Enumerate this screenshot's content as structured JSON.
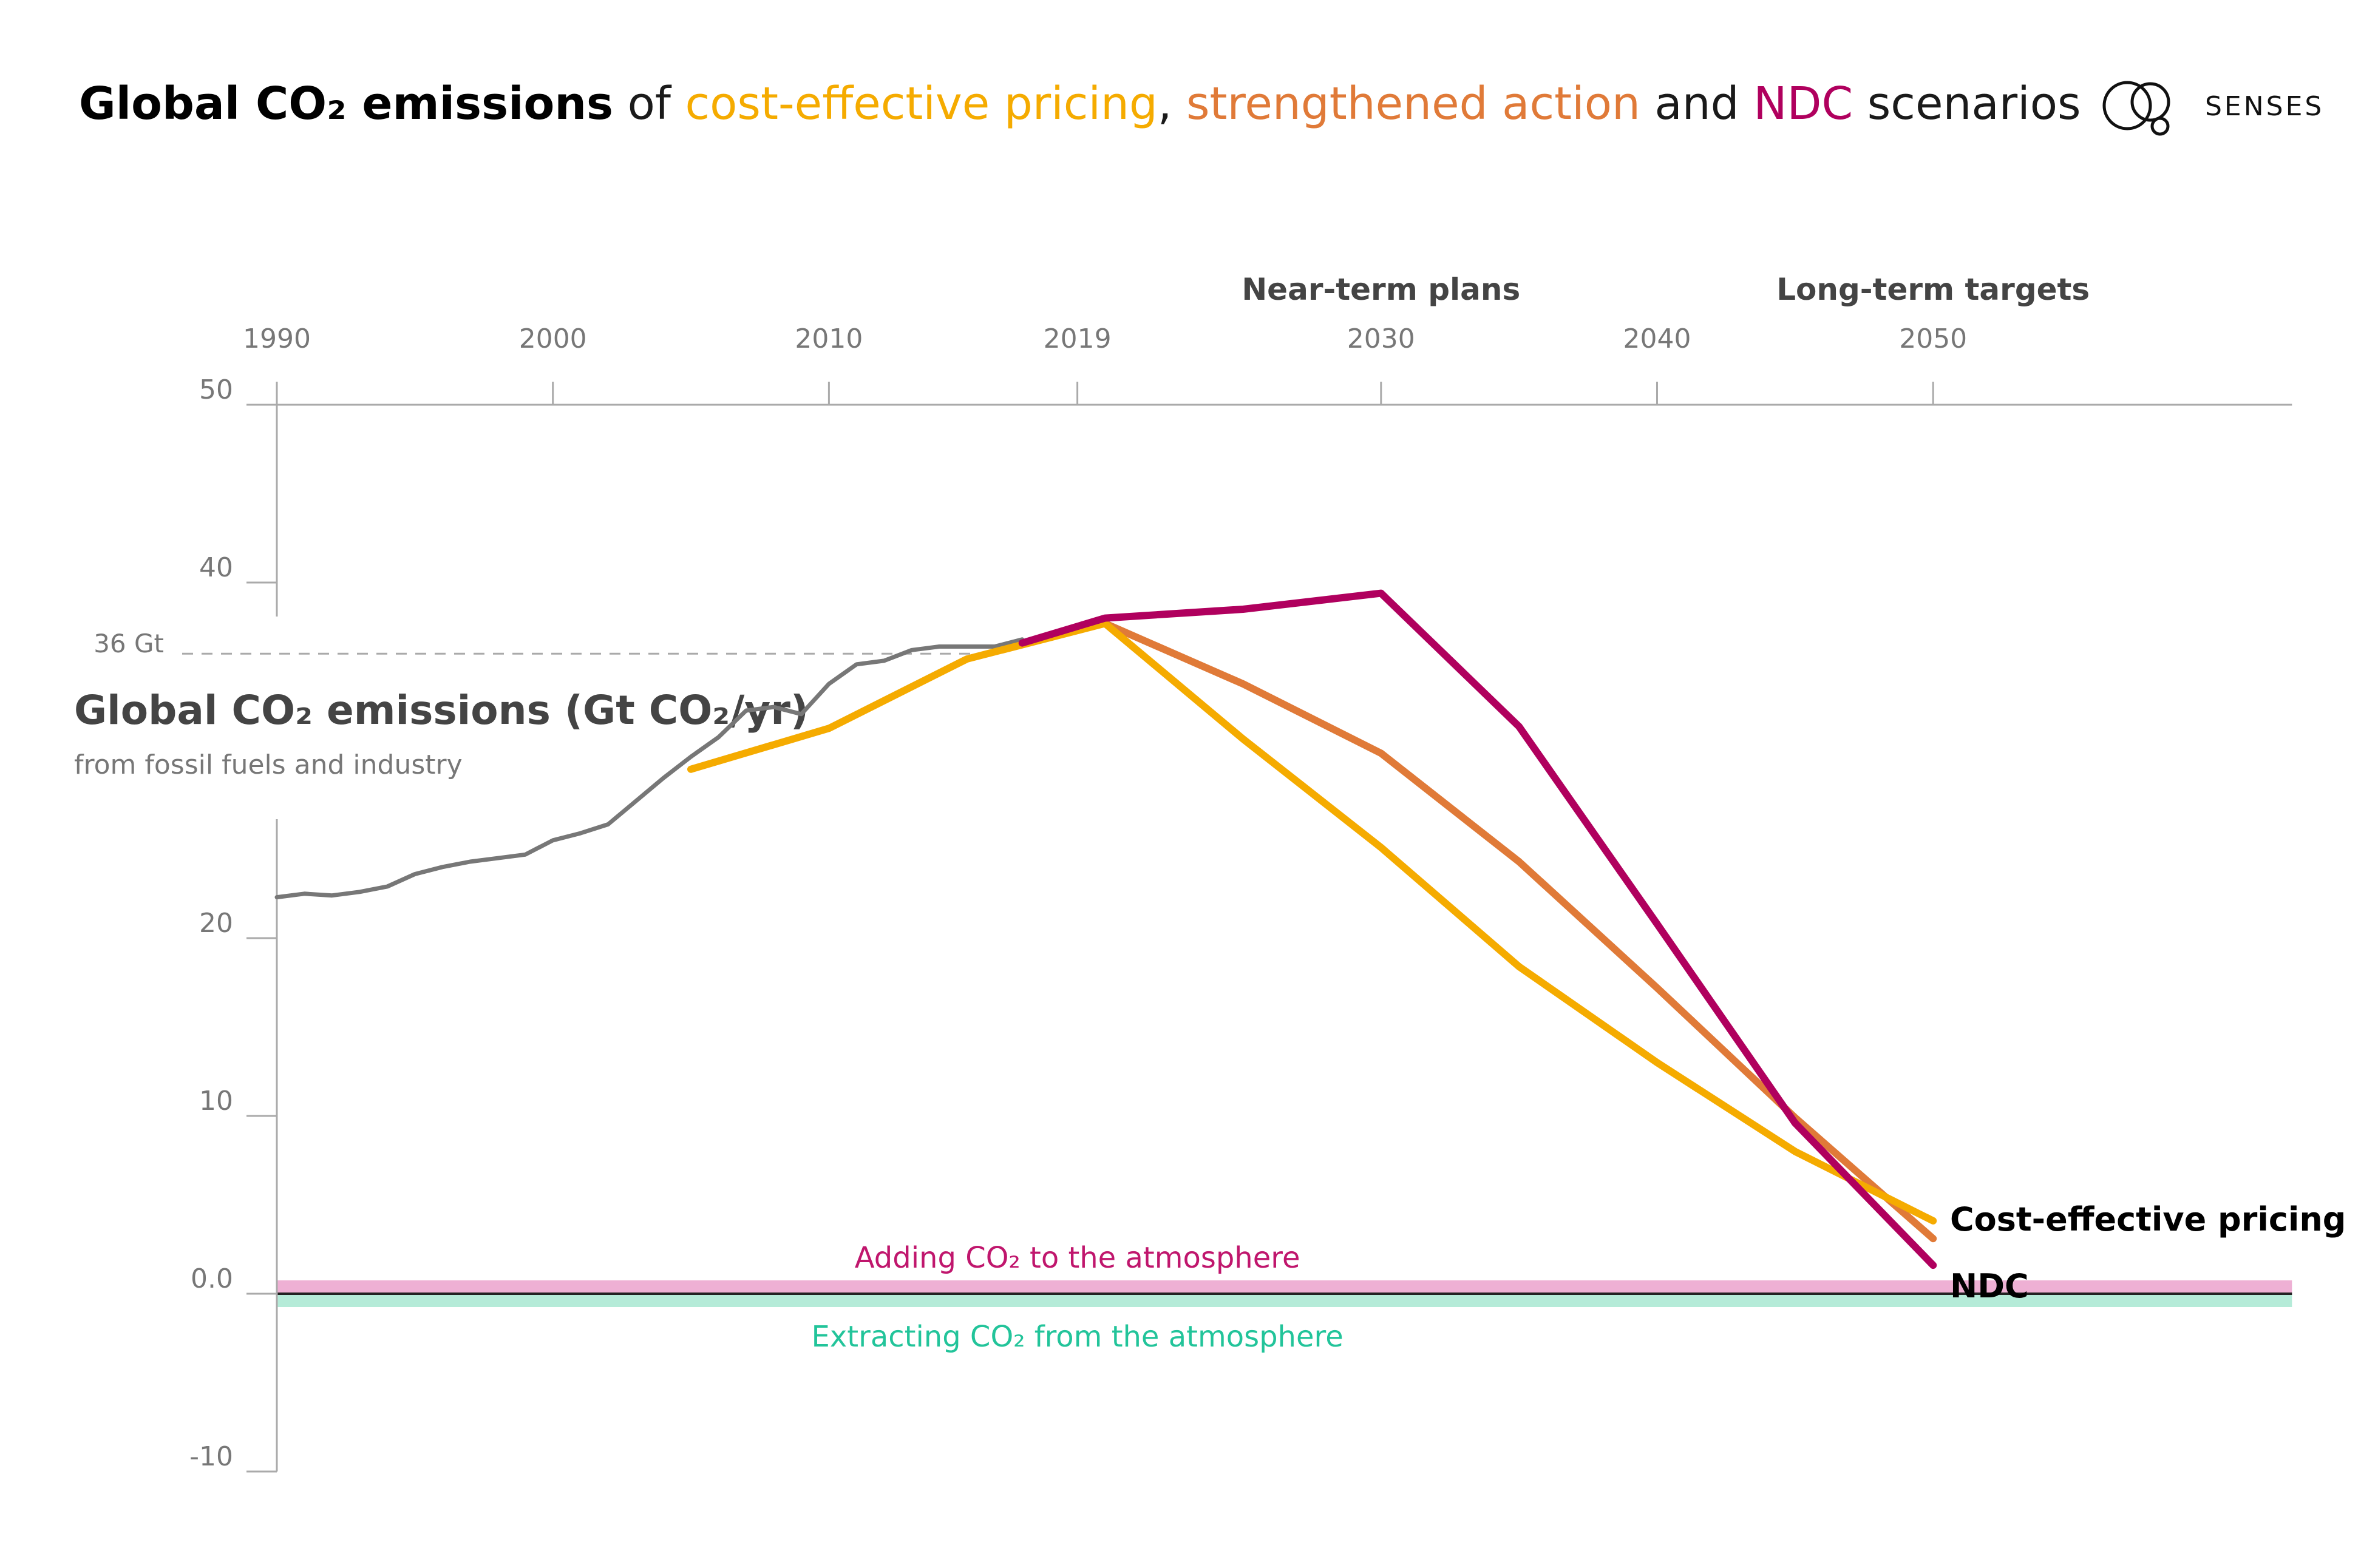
{
  "title": {
    "bold": "Global CO₂ emissions",
    "of": "of",
    "pricing": "cost-effective pricing",
    "comma": ",",
    "strengthened": "strengthened action",
    "and": "and",
    "ndc": "NDC",
    "scenarios": "scenarios"
  },
  "brand": {
    "name": "SENSES",
    "icon": "senses-logo-icon"
  },
  "colors": {
    "historical": "#777777",
    "cost_effective": "#f5ab00",
    "strengthened": "#e07a38",
    "ndc": "#b0005e",
    "adding_band": "#eeb0d4",
    "extracting_band": "#b5ebd8",
    "adding_text": "#c0166d",
    "extracting_text": "#22c49a"
  },
  "chart_data": {
    "type": "line",
    "title": "Global CO₂ emissions of cost-effective pricing, strengthened action and NDC scenarios",
    "ylabel": "Global CO₂ emissions (Gt CO₂/yr)",
    "ylabel_sub": "from fossil fuels and industry",
    "ylim": [
      -10,
      50
    ],
    "xlim": [
      1990,
      2063
    ],
    "y_ticks": [
      "50",
      "40",
      "20",
      "10",
      "0.0",
      "-10"
    ],
    "x_ticks": [
      "1990",
      "2000",
      "2010",
      "2019",
      "2030",
      "2040",
      "2050"
    ],
    "x_tick_values": [
      1990,
      2000,
      2010,
      2019,
      2030,
      2040,
      2050
    ],
    "period_labels": [
      "Near-term plans",
      "Long-term targets"
    ],
    "reference_line": {
      "label": "36 Gt",
      "value": 36
    },
    "zero_bands": {
      "adding": "Adding CO₂ to the atmosphere",
      "extracting": "Extracting CO₂ from the atmosphere"
    },
    "series": [
      {
        "key": "historical",
        "x": [
          1990,
          1991,
          1992,
          1993,
          1994,
          1995,
          1996,
          1997,
          1998,
          1999,
          2000,
          2001,
          2002,
          2003,
          2004,
          2005,
          2006,
          2007,
          2008,
          2009,
          2010,
          2011,
          2012,
          2013,
          2014,
          2015,
          2016,
          2017
        ],
        "y": [
          22.3,
          22.5,
          22.4,
          22.6,
          22.9,
          23.6,
          24.0,
          24.3,
          24.5,
          24.7,
          25.5,
          25.9,
          26.4,
          27.7,
          29.0,
          30.2,
          31.3,
          32.8,
          33.0,
          32.6,
          34.3,
          35.4,
          35.6,
          36.2,
          36.4,
          36.4,
          36.4,
          36.8
        ]
      },
      {
        "key": "cost_effective",
        "name": "Cost-effective pricing",
        "x": [
          2005,
          2010,
          2015,
          2020,
          2025,
          2030,
          2035,
          2040,
          2045,
          2050
        ],
        "y": [
          29.5,
          31.8,
          35.7,
          37.7,
          31.2,
          25.1,
          18.4,
          13.0,
          8.0,
          4.1
        ]
      },
      {
        "key": "strengthened",
        "x": [
          2020,
          2025,
          2030,
          2035,
          2040,
          2045,
          2050
        ],
        "y": [
          37.7,
          34.3,
          30.4,
          24.3,
          17.2,
          9.9,
          3.1
        ]
      },
      {
        "key": "ndc",
        "name": "NDC",
        "x": [
          2017,
          2020,
          2025,
          2030,
          2035,
          2040,
          2045,
          2050
        ],
        "y": [
          36.6,
          38.0,
          38.5,
          39.4,
          31.9,
          20.8,
          9.6,
          1.6
        ]
      }
    ]
  }
}
